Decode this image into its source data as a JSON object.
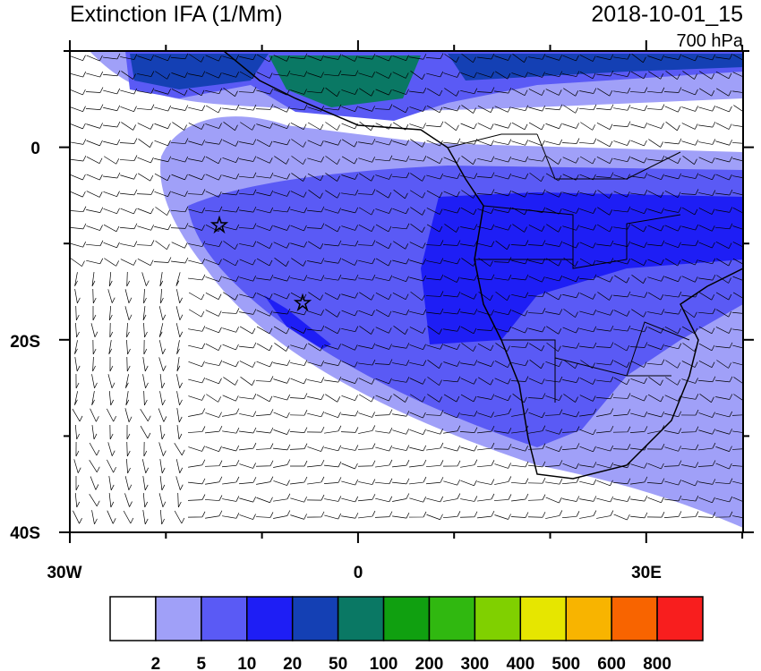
{
  "map": {
    "title": "Extinction IFA (1/Mm)",
    "timestamp": "2018-10-01_15",
    "level": "700 hPa",
    "lat_labels": [
      "0",
      "20S",
      "40S"
    ],
    "lon_labels": [
      "30W",
      "0",
      "30E"
    ],
    "colorbar": {
      "colors": [
        "#ffffff",
        "#a0a0f8",
        "#5a5af5",
        "#1e1ef5",
        "#1440b4",
        "#0a7864",
        "#10a010",
        "#30b810",
        "#80d000",
        "#e6e600",
        "#f8b400",
        "#f86400",
        "#f81e1e"
      ],
      "labels": [
        2,
        5,
        10,
        20,
        50,
        100,
        200,
        300,
        400,
        500,
        600,
        800
      ]
    }
  }
}
